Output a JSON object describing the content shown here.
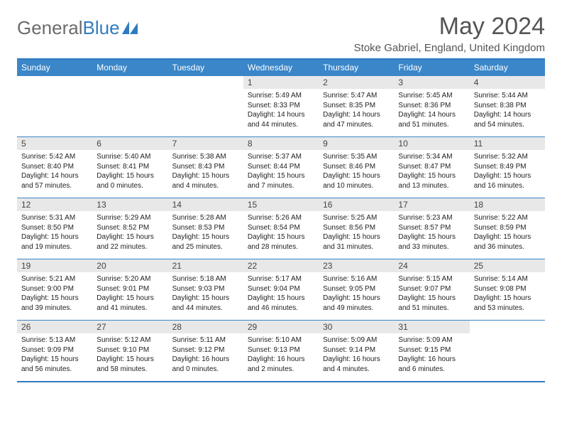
{
  "logo": {
    "text1": "General",
    "text2": "Blue"
  },
  "title": "May 2024",
  "location": "Stoke Gabriel, England, United Kingdom",
  "colors": {
    "header_bg": "#3a86c8",
    "header_text": "#ffffff",
    "border": "#2f7bc1",
    "daynum_bg": "#e8e8e8",
    "text": "#222222",
    "title_color": "#555555",
    "logo_gray": "#6b6b6b",
    "logo_blue": "#2f7bc1"
  },
  "weekdays": [
    "Sunday",
    "Monday",
    "Tuesday",
    "Wednesday",
    "Thursday",
    "Friday",
    "Saturday"
  ],
  "weeks": [
    [
      {
        "n": "",
        "lines": [
          "",
          "",
          "",
          ""
        ]
      },
      {
        "n": "",
        "lines": [
          "",
          "",
          "",
          ""
        ]
      },
      {
        "n": "",
        "lines": [
          "",
          "",
          "",
          ""
        ]
      },
      {
        "n": "1",
        "lines": [
          "Sunrise: 5:49 AM",
          "Sunset: 8:33 PM",
          "Daylight: 14 hours",
          "and 44 minutes."
        ]
      },
      {
        "n": "2",
        "lines": [
          "Sunrise: 5:47 AM",
          "Sunset: 8:35 PM",
          "Daylight: 14 hours",
          "and 47 minutes."
        ]
      },
      {
        "n": "3",
        "lines": [
          "Sunrise: 5:45 AM",
          "Sunset: 8:36 PM",
          "Daylight: 14 hours",
          "and 51 minutes."
        ]
      },
      {
        "n": "4",
        "lines": [
          "Sunrise: 5:44 AM",
          "Sunset: 8:38 PM",
          "Daylight: 14 hours",
          "and 54 minutes."
        ]
      }
    ],
    [
      {
        "n": "5",
        "lines": [
          "Sunrise: 5:42 AM",
          "Sunset: 8:40 PM",
          "Daylight: 14 hours",
          "and 57 minutes."
        ]
      },
      {
        "n": "6",
        "lines": [
          "Sunrise: 5:40 AM",
          "Sunset: 8:41 PM",
          "Daylight: 15 hours",
          "and 0 minutes."
        ]
      },
      {
        "n": "7",
        "lines": [
          "Sunrise: 5:38 AM",
          "Sunset: 8:43 PM",
          "Daylight: 15 hours",
          "and 4 minutes."
        ]
      },
      {
        "n": "8",
        "lines": [
          "Sunrise: 5:37 AM",
          "Sunset: 8:44 PM",
          "Daylight: 15 hours",
          "and 7 minutes."
        ]
      },
      {
        "n": "9",
        "lines": [
          "Sunrise: 5:35 AM",
          "Sunset: 8:46 PM",
          "Daylight: 15 hours",
          "and 10 minutes."
        ]
      },
      {
        "n": "10",
        "lines": [
          "Sunrise: 5:34 AM",
          "Sunset: 8:47 PM",
          "Daylight: 15 hours",
          "and 13 minutes."
        ]
      },
      {
        "n": "11",
        "lines": [
          "Sunrise: 5:32 AM",
          "Sunset: 8:49 PM",
          "Daylight: 15 hours",
          "and 16 minutes."
        ]
      }
    ],
    [
      {
        "n": "12",
        "lines": [
          "Sunrise: 5:31 AM",
          "Sunset: 8:50 PM",
          "Daylight: 15 hours",
          "and 19 minutes."
        ]
      },
      {
        "n": "13",
        "lines": [
          "Sunrise: 5:29 AM",
          "Sunset: 8:52 PM",
          "Daylight: 15 hours",
          "and 22 minutes."
        ]
      },
      {
        "n": "14",
        "lines": [
          "Sunrise: 5:28 AM",
          "Sunset: 8:53 PM",
          "Daylight: 15 hours",
          "and 25 minutes."
        ]
      },
      {
        "n": "15",
        "lines": [
          "Sunrise: 5:26 AM",
          "Sunset: 8:54 PM",
          "Daylight: 15 hours",
          "and 28 minutes."
        ]
      },
      {
        "n": "16",
        "lines": [
          "Sunrise: 5:25 AM",
          "Sunset: 8:56 PM",
          "Daylight: 15 hours",
          "and 31 minutes."
        ]
      },
      {
        "n": "17",
        "lines": [
          "Sunrise: 5:23 AM",
          "Sunset: 8:57 PM",
          "Daylight: 15 hours",
          "and 33 minutes."
        ]
      },
      {
        "n": "18",
        "lines": [
          "Sunrise: 5:22 AM",
          "Sunset: 8:59 PM",
          "Daylight: 15 hours",
          "and 36 minutes."
        ]
      }
    ],
    [
      {
        "n": "19",
        "lines": [
          "Sunrise: 5:21 AM",
          "Sunset: 9:00 PM",
          "Daylight: 15 hours",
          "and 39 minutes."
        ]
      },
      {
        "n": "20",
        "lines": [
          "Sunrise: 5:20 AM",
          "Sunset: 9:01 PM",
          "Daylight: 15 hours",
          "and 41 minutes."
        ]
      },
      {
        "n": "21",
        "lines": [
          "Sunrise: 5:18 AM",
          "Sunset: 9:03 PM",
          "Daylight: 15 hours",
          "and 44 minutes."
        ]
      },
      {
        "n": "22",
        "lines": [
          "Sunrise: 5:17 AM",
          "Sunset: 9:04 PM",
          "Daylight: 15 hours",
          "and 46 minutes."
        ]
      },
      {
        "n": "23",
        "lines": [
          "Sunrise: 5:16 AM",
          "Sunset: 9:05 PM",
          "Daylight: 15 hours",
          "and 49 minutes."
        ]
      },
      {
        "n": "24",
        "lines": [
          "Sunrise: 5:15 AM",
          "Sunset: 9:07 PM",
          "Daylight: 15 hours",
          "and 51 minutes."
        ]
      },
      {
        "n": "25",
        "lines": [
          "Sunrise: 5:14 AM",
          "Sunset: 9:08 PM",
          "Daylight: 15 hours",
          "and 53 minutes."
        ]
      }
    ],
    [
      {
        "n": "26",
        "lines": [
          "Sunrise: 5:13 AM",
          "Sunset: 9:09 PM",
          "Daylight: 15 hours",
          "and 56 minutes."
        ]
      },
      {
        "n": "27",
        "lines": [
          "Sunrise: 5:12 AM",
          "Sunset: 9:10 PM",
          "Daylight: 15 hours",
          "and 58 minutes."
        ]
      },
      {
        "n": "28",
        "lines": [
          "Sunrise: 5:11 AM",
          "Sunset: 9:12 PM",
          "Daylight: 16 hours",
          "and 0 minutes."
        ]
      },
      {
        "n": "29",
        "lines": [
          "Sunrise: 5:10 AM",
          "Sunset: 9:13 PM",
          "Daylight: 16 hours",
          "and 2 minutes."
        ]
      },
      {
        "n": "30",
        "lines": [
          "Sunrise: 5:09 AM",
          "Sunset: 9:14 PM",
          "Daylight: 16 hours",
          "and 4 minutes."
        ]
      },
      {
        "n": "31",
        "lines": [
          "Sunrise: 5:09 AM",
          "Sunset: 9:15 PM",
          "Daylight: 16 hours",
          "and 6 minutes."
        ]
      },
      {
        "n": "",
        "lines": [
          "",
          "",
          "",
          ""
        ]
      }
    ]
  ]
}
